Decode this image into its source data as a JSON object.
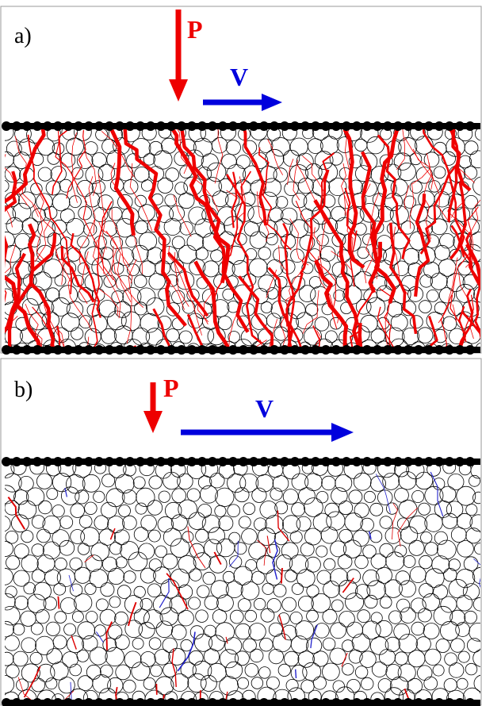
{
  "panels": [
    {
      "label": "a)",
      "force_label": "P",
      "velocity_label": "V"
    },
    {
      "label": "b)",
      "force_label": "P",
      "velocity_label": "V"
    }
  ]
}
